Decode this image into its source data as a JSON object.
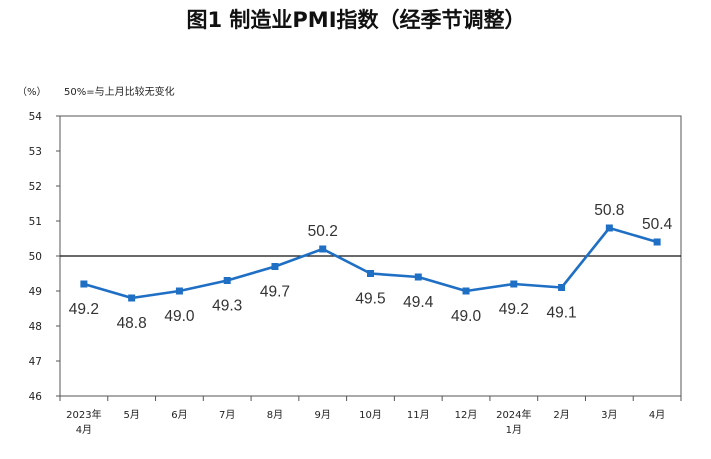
{
  "chart_data": {
    "type": "line",
    "title": "图1  制造业PMI指数（经季节调整）",
    "unit_label": "（%）",
    "note": "50%=与上月比较无变化",
    "categories": [
      [
        "2023年",
        "4月"
      ],
      [
        "5月"
      ],
      [
        "6月"
      ],
      [
        "7月"
      ],
      [
        "8月"
      ],
      [
        "9月"
      ],
      [
        "10月"
      ],
      [
        "11月"
      ],
      [
        "12月"
      ],
      [
        "2024年",
        "1月"
      ],
      [
        "2月"
      ],
      [
        "3月"
      ],
      [
        "4月"
      ]
    ],
    "series": [
      {
        "values": [
          49.2,
          48.8,
          49.0,
          49.3,
          49.7,
          50.2,
          49.5,
          49.4,
          49.0,
          49.2,
          49.1,
          50.8,
          50.4
        ],
        "labels": [
          "49.2",
          "48.8",
          "49.0",
          "49.3",
          "49.7",
          "50.2",
          "49.5",
          "49.4",
          "49.0",
          "49.2",
          "49.1",
          "50.8",
          "50.4"
        ],
        "label_positions": [
          "below",
          "below",
          "below",
          "below",
          "below",
          "above",
          "below",
          "below",
          "below",
          "below",
          "below",
          "above",
          "above"
        ],
        "color": "#1f6fc5"
      }
    ],
    "ylim": [
      46,
      54
    ],
    "yticks": [
      "46",
      "47",
      "48",
      "49",
      "50",
      "51",
      "52",
      "53",
      "54"
    ],
    "reference_line": 50,
    "grid": false,
    "legend": "none"
  }
}
